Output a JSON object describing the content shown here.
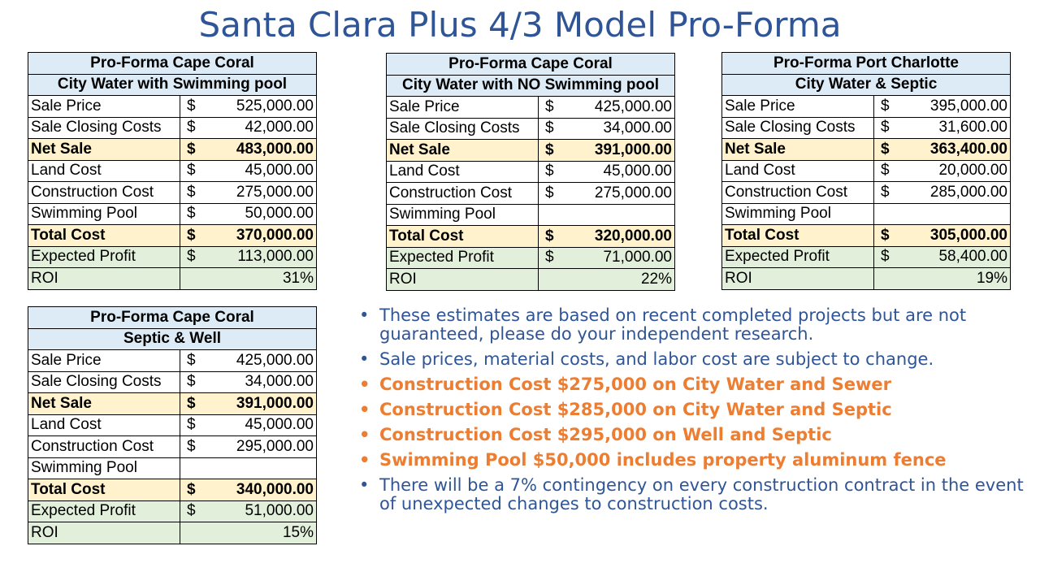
{
  "title": "Santa Clara Plus 4/3 Model Pro-Forma",
  "tables": [
    {
      "header1": "Pro-Forma Cape Coral",
      "header2": "City Water with Swimming pool",
      "rows": [
        {
          "label": "Sale Price",
          "cur": "$",
          "value": "525,000.00"
        },
        {
          "label": "Sale Closing Costs",
          "cur": "$",
          "value": "42,000.00"
        },
        {
          "label": "Net Sale",
          "cur": "$",
          "value": "483,000.00"
        },
        {
          "label": "Land Cost",
          "cur": "$",
          "value": "45,000.00"
        },
        {
          "label": "Construction Cost",
          "cur": "$",
          "value": "275,000.00"
        },
        {
          "label": "Swimming Pool",
          "cur": "$",
          "value": "50,000.00"
        },
        {
          "label": "Total Cost",
          "cur": "$",
          "value": "370,000.00"
        },
        {
          "label": "Expected Profit",
          "cur": "$",
          "value": "113,000.00"
        }
      ],
      "roi_label": "ROI",
      "roi": "31%"
    },
    {
      "header1": "Pro-Forma Cape Coral",
      "header2": "City Water with NO Swimming pool",
      "rows": [
        {
          "label": "Sale Price",
          "cur": "$",
          "value": "425,000.00"
        },
        {
          "label": "Sale Closing Costs",
          "cur": "$",
          "value": "34,000.00"
        },
        {
          "label": "Net Sale",
          "cur": "$",
          "value": "391,000.00"
        },
        {
          "label": "Land Cost",
          "cur": "$",
          "value": "45,000.00"
        },
        {
          "label": "Construction Cost",
          "cur": "$",
          "value": "275,000.00"
        },
        {
          "label": "Swimming Pool",
          "cur": "",
          "value": ""
        },
        {
          "label": "Total Cost",
          "cur": "$",
          "value": "320,000.00"
        },
        {
          "label": "Expected Profit",
          "cur": "$",
          "value": "71,000.00"
        }
      ],
      "roi_label": "ROI",
      "roi": "22%"
    },
    {
      "header1": "Pro-Forma Port Charlotte",
      "header2": "City Water & Septic",
      "rows": [
        {
          "label": "Sale Price",
          "cur": "$",
          "value": "395,000.00"
        },
        {
          "label": "Sale Closing Costs",
          "cur": "$",
          "value": "31,600.00"
        },
        {
          "label": "Net Sale",
          "cur": "$",
          "value": "363,400.00"
        },
        {
          "label": "Land Cost",
          "cur": "$",
          "value": "20,000.00"
        },
        {
          "label": "Construction Cost",
          "cur": "$",
          "value": "285,000.00"
        },
        {
          "label": "Swimming Pool",
          "cur": "",
          "value": ""
        },
        {
          "label": "Total Cost",
          "cur": "$",
          "value": "305,000.00"
        },
        {
          "label": "Expected Profit",
          "cur": "$",
          "value": "58,400.00"
        }
      ],
      "roi_label": "ROI",
      "roi": "19%"
    },
    {
      "header1": "Pro-Forma Cape Coral",
      "header2": "Septic & Well",
      "rows": [
        {
          "label": "Sale Price",
          "cur": "$",
          "value": "425,000.00"
        },
        {
          "label": "Sale Closing Costs",
          "cur": "$",
          "value": "34,000.00"
        },
        {
          "label": "Net Sale",
          "cur": "$",
          "value": "391,000.00"
        },
        {
          "label": "Land Cost",
          "cur": "$",
          "value": "45,000.00"
        },
        {
          "label": "Construction Cost",
          "cur": "$",
          "value": "295,000.00"
        },
        {
          "label": "Swimming Pool",
          "cur": "",
          "value": ""
        },
        {
          "label": "Total Cost",
          "cur": "$",
          "value": "340,000.00"
        },
        {
          "label": "Expected Profit",
          "cur": "$",
          "value": "51,000.00"
        }
      ],
      "roi_label": "ROI",
      "roi": "15%"
    }
  ],
  "bullets": [
    "These estimates are based on recent completed projects but are not guaranteed, please do your independent research.",
    "Sale prices, material costs, and labor cost are subject to change.",
    "Construction Cost $275,000 on City Water and Sewer",
    "Construction Cost $285,000 on City Water and Septic",
    "Construction Cost $295,000 on Well and Septic",
    "Swimming Pool $50,000 includes property aluminum fence",
    "There will be a 7% contingency on every construction contract in the event of unexpected changes to construction costs."
  ],
  "bullet_symbol": "•",
  "colors": {
    "title": "#2F5597",
    "header_fill": "#DDEBF7",
    "highlight_fill": "#FFF2CC",
    "profit_fill": "#E2EFDA",
    "bullet_blue": "#2F5597",
    "bullet_orange": "#ED7D31"
  }
}
